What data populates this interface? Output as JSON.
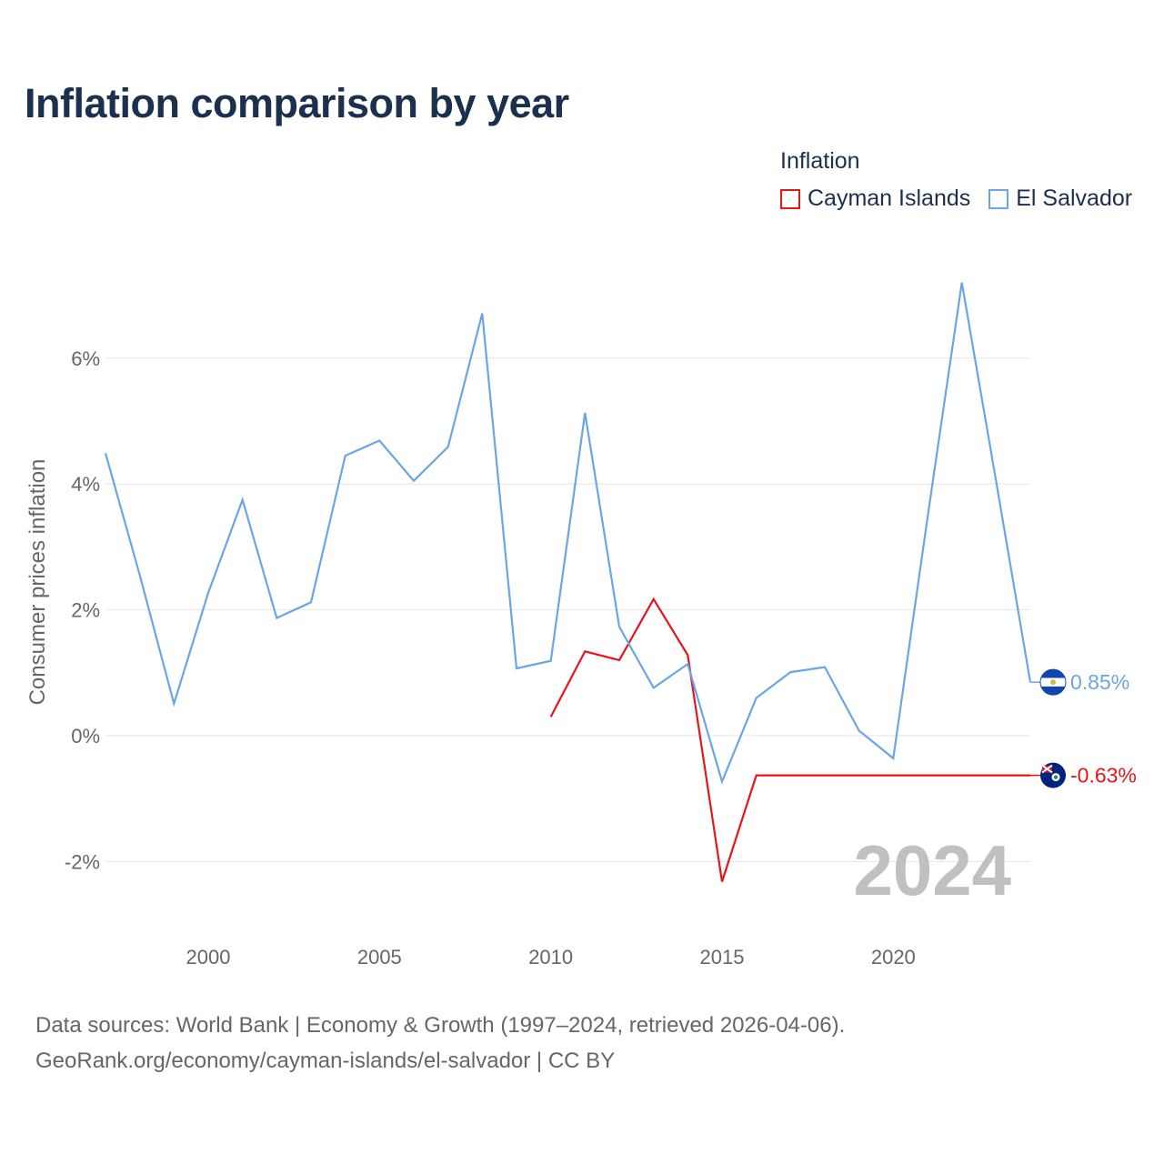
{
  "title": "Inflation comparison by year",
  "legend": {
    "title": "Inflation",
    "items": [
      {
        "name": "Cayman Islands",
        "color": "#e8141a"
      },
      {
        "name": "El Salvador",
        "color": "#6aa6e4"
      }
    ]
  },
  "year_watermark": "2024",
  "sources": {
    "line1": "Data sources: World Bank | Economy & Growth (1997–2024, retrieved 2026-04-06).",
    "line2": "GeoRank.org/economy/cayman-islands/el-salvador | CC BY"
  },
  "chart_data": {
    "type": "line",
    "title": "Inflation comparison by year",
    "xlabel": "",
    "ylabel": "Consumer prices inflation",
    "xlim": [
      1997,
      2024
    ],
    "ylim": [
      -3,
      7.5
    ],
    "x_ticks": [
      2000,
      2005,
      2010,
      2015,
      2020
    ],
    "y_ticks": [
      -2,
      0,
      2,
      4,
      6
    ],
    "y_tick_labels": [
      "-2%",
      "0%",
      "2%",
      "4%",
      "6%"
    ],
    "grid": true,
    "legend_position": "top-right",
    "series": [
      {
        "name": "Cayman Islands",
        "color": "#e8141a",
        "end_label": "-0.63%",
        "flag_icon": "cayman-islands-flag-icon",
        "x": [
          2010,
          2011,
          2012,
          2013,
          2014,
          2015,
          2016,
          2024
        ],
        "values": [
          0.3,
          1.34,
          1.2,
          2.17,
          1.28,
          -2.32,
          -0.63,
          -0.63
        ]
      },
      {
        "name": "El Salvador",
        "color": "#6aa6e4",
        "end_label": "0.85%",
        "flag_icon": "el-salvador-flag-icon",
        "x": [
          1997,
          1998,
          1999,
          2000,
          2001,
          2002,
          2003,
          2004,
          2005,
          2006,
          2007,
          2008,
          2009,
          2010,
          2011,
          2012,
          2013,
          2014,
          2015,
          2016,
          2017,
          2018,
          2019,
          2020,
          2021,
          2022,
          2023,
          2024
        ],
        "values": [
          4.49,
          2.55,
          0.51,
          2.27,
          3.75,
          1.87,
          2.12,
          4.45,
          4.69,
          4.05,
          4.59,
          6.71,
          1.07,
          1.19,
          5.13,
          1.73,
          0.76,
          1.14,
          -0.73,
          0.6,
          1.01,
          1.09,
          0.08,
          -0.36,
          3.47,
          7.2,
          4.05,
          0.85
        ]
      }
    ]
  }
}
